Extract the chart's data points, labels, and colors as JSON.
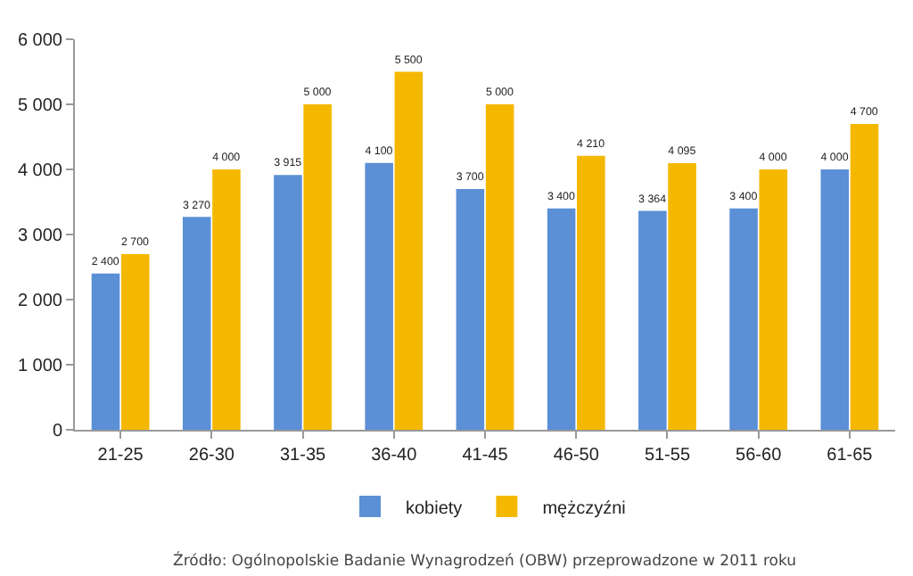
{
  "chart_data": {
    "type": "bar",
    "categories": [
      "21-25",
      "26-30",
      "31-35",
      "36-40",
      "41-45",
      "46-50",
      "51-55",
      "56-60",
      "61-65"
    ],
    "series": [
      {
        "name": "kobiety",
        "color": "#5b8fd6",
        "values": [
          2400,
          3270,
          3915,
          4100,
          3700,
          3400,
          3364,
          3400,
          4000
        ],
        "value_labels": [
          "2 400",
          "3 270",
          "3 915",
          "4 100",
          "3 700",
          "3 400",
          "3 364",
          "3 400",
          "4 000"
        ]
      },
      {
        "name": "mężczyźni",
        "color": "#f5b800",
        "values": [
          2700,
          4000,
          5000,
          5500,
          5000,
          4210,
          4095,
          4000,
          4700
        ],
        "value_labels": [
          "2 700",
          "4 000",
          "5 000",
          "5 500",
          "5 000",
          "4 210",
          "4 095",
          "4 000",
          "4 700"
        ]
      }
    ],
    "ylim": [
      0,
      6000
    ],
    "yticks": [
      0,
      {
        "value": 1000,
        "label": "1 000"
      },
      {
        "value": 2000,
        "label": "2 000"
      },
      {
        "value": 3000,
        "label": "3 000"
      },
      {
        "value": 4000,
        "label": "4 000"
      },
      {
        "value": 5000,
        "label": "5 000"
      },
      {
        "value": 6000,
        "label": "6 000"
      }
    ],
    "grid": false,
    "legend": "bottom",
    "annotations": [
      "Źródło: Ogólnopolskie Badanie Wynagrodzeń (OBW) przeprowadzone w 2011 roku"
    ]
  }
}
